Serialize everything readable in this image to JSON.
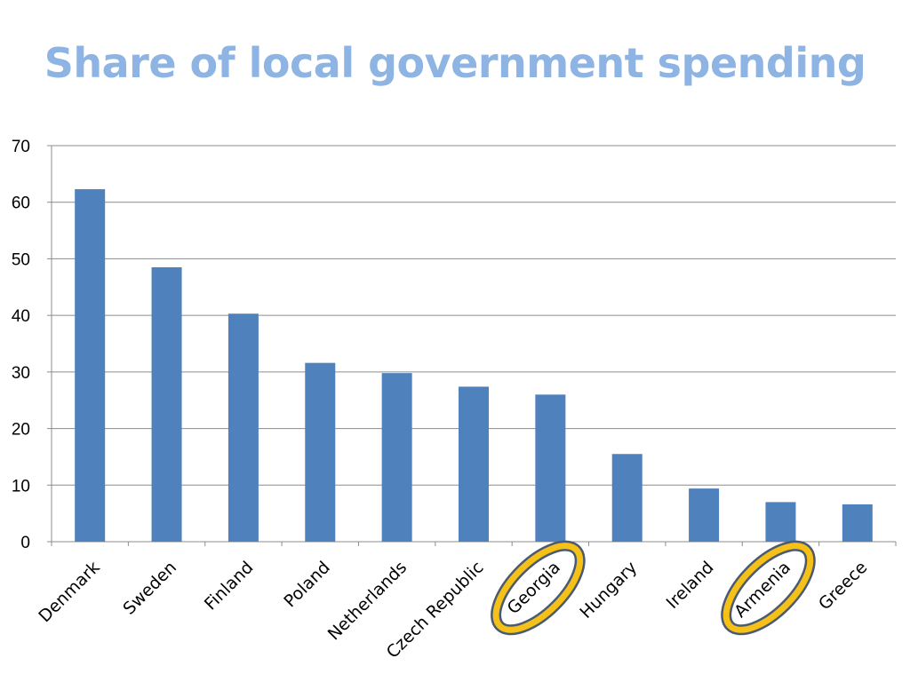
{
  "chart_data": {
    "type": "bar",
    "title": "Share of local government spending",
    "categories": [
      "Denmark",
      "Sweden",
      "Finland",
      "Poland",
      "Netherlands",
      "Czech Republic",
      "Georgia",
      "Hungary",
      "Ireland",
      "Armenia",
      "Greece"
    ],
    "values": [
      62.3,
      48.5,
      40.3,
      31.6,
      29.8,
      27.4,
      26.0,
      15.5,
      9.4,
      7.0,
      6.6
    ],
    "highlighted_categories": [
      "Georgia",
      "Armenia"
    ],
    "ylim": [
      0,
      70
    ],
    "yticks": [
      0,
      10,
      20,
      30,
      40,
      50,
      60,
      70
    ],
    "xlabel": "",
    "ylabel": "",
    "grid": true,
    "legend": "none",
    "colors": {
      "bar": "#4f81bd",
      "title": "#8eb4e3",
      "highlight_fill": "#f5c018",
      "highlight_stroke": "#4a5a70",
      "grid": "#8c8c8c"
    }
  }
}
